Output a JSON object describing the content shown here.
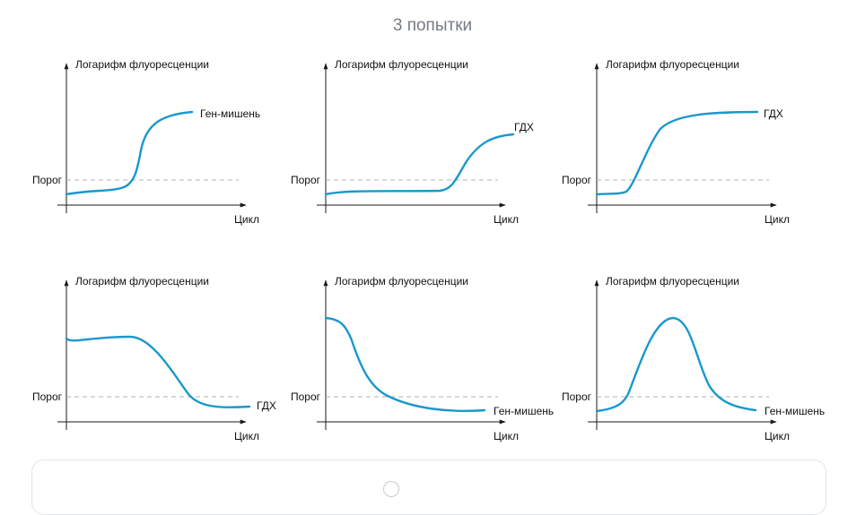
{
  "header": {
    "attempts": "3 попытки"
  },
  "common": {
    "y_axis_label": "Логарифм флуоресценции",
    "x_axis_label": "Цикл",
    "threshold_label": "Порог"
  },
  "plots": [
    {
      "id": "p1",
      "curve_label": "Ген-мишень",
      "shape": "rising-sigmoid-mid"
    },
    {
      "id": "p2",
      "curve_label": "ГДХ",
      "shape": "rising-sigmoid-late"
    },
    {
      "id": "p3",
      "curve_label": "ГДХ",
      "shape": "rising-sigmoid-early"
    },
    {
      "id": "p4",
      "curve_label": "ГДХ",
      "shape": "falling-sigmoid-late"
    },
    {
      "id": "p5",
      "curve_label": "Ген-мишень",
      "shape": "falling-sigmoid-early"
    },
    {
      "id": "p6",
      "curve_label": "Ген-мишень",
      "shape": "peak"
    }
  ],
  "colors": {
    "curve": "#1a98cc",
    "axis": "#1a1a1a",
    "threshold": "#b0b0b0",
    "header": "#767b85"
  },
  "bottom_card": {
    "icon": "circle-icon"
  }
}
